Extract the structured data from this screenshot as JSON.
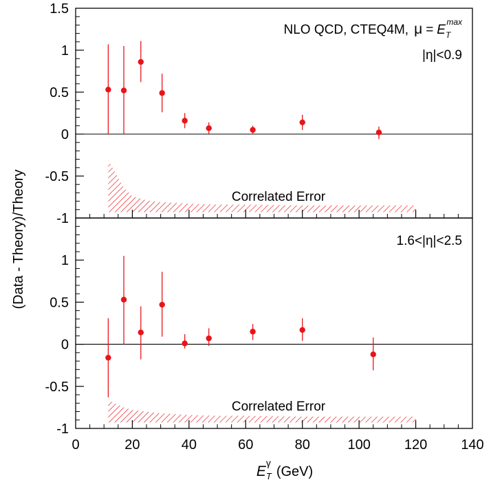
{
  "chart_data": {
    "type": "scatter",
    "ylabel": "(Data - Theory)/Theory",
    "xlabel": {
      "main": "E",
      "sup": "γ",
      "sub": "T",
      "unit": "(GeV)"
    },
    "xlim": [
      0,
      140
    ],
    "x_ticks": [
      "0",
      "20",
      "40",
      "60",
      "80",
      "100",
      "120",
      "140"
    ],
    "ylim": [
      -1,
      1.5
    ],
    "panels": [
      {
        "id": "top",
        "y_ticks": [
          "1.5",
          "1",
          "0.5",
          "0",
          "-0.5",
          "-1"
        ],
        "annotations": {
          "theory_prefix": "NLO QCD, CTEQ4M,",
          "mu": "μ",
          "equals": "=",
          "et_main": "E",
          "et_sub": "T",
          "et_sup": "max",
          "region": "|η|<0.9",
          "band_label": "Correlated Error"
        },
        "series": [
          {
            "x": 11.5,
            "y": 0.53,
            "ylow": 0.0,
            "yhigh": 1.07
          },
          {
            "x": 17.0,
            "y": 0.52,
            "ylow": 0.0,
            "yhigh": 1.05
          },
          {
            "x": 23.0,
            "y": 0.86,
            "ylow": 0.62,
            "yhigh": 1.11
          },
          {
            "x": 30.5,
            "y": 0.49,
            "ylow": 0.26,
            "yhigh": 0.72
          },
          {
            "x": 38.5,
            "y": 0.16,
            "ylow": 0.07,
            "yhigh": 0.25
          },
          {
            "x": 47.0,
            "y": 0.07,
            "ylow": 0.0,
            "yhigh": 0.14
          },
          {
            "x": 62.5,
            "y": 0.05,
            "ylow": 0.0,
            "yhigh": 0.1
          },
          {
            "x": 80.0,
            "y": 0.14,
            "ylow": 0.05,
            "yhigh": 0.23
          },
          {
            "x": 107.0,
            "y": 0.02,
            "ylow": -0.06,
            "yhigh": 0.09
          }
        ],
        "band": {
          "x": [
            11.5,
            13,
            15,
            17,
            20,
            25,
            30,
            40,
            50,
            60,
            80,
            100,
            120
          ],
          "top": [
            -0.31,
            -0.4,
            -0.52,
            -0.64,
            -0.74,
            -0.79,
            -0.81,
            -0.83,
            -0.84,
            -0.84,
            -0.85,
            -0.85,
            -0.85
          ],
          "bottom": -0.93
        }
      },
      {
        "id": "bottom",
        "y_ticks": [
          "1",
          "0.5",
          "0",
          "-0.5",
          "-1"
        ],
        "annotations": {
          "region": "1.6<|η|<2.5",
          "band_label": "Correlated Error"
        },
        "series": [
          {
            "x": 11.5,
            "y": -0.16,
            "ylow": -0.63,
            "yhigh": 0.31
          },
          {
            "x": 17.0,
            "y": 0.53,
            "ylow": 0.0,
            "yhigh": 1.05
          },
          {
            "x": 23.0,
            "y": 0.14,
            "ylow": -0.18,
            "yhigh": 0.45
          },
          {
            "x": 30.5,
            "y": 0.47,
            "ylow": 0.09,
            "yhigh": 0.86
          },
          {
            "x": 38.5,
            "y": 0.01,
            "ylow": -0.05,
            "yhigh": 0.12
          },
          {
            "x": 47.0,
            "y": 0.07,
            "ylow": -0.02,
            "yhigh": 0.19
          },
          {
            "x": 62.5,
            "y": 0.15,
            "ylow": 0.05,
            "yhigh": 0.24
          },
          {
            "x": 80.0,
            "y": 0.17,
            "ylow": 0.04,
            "yhigh": 0.31
          },
          {
            "x": 105.0,
            "y": -0.12,
            "ylow": -0.31,
            "yhigh": 0.08
          }
        ],
        "band": {
          "x": [
            11.5,
            13,
            15,
            17,
            20,
            25,
            30,
            40,
            50,
            60,
            80,
            100,
            120
          ],
          "top": [
            -0.66,
            -0.69,
            -0.72,
            -0.75,
            -0.78,
            -0.8,
            -0.82,
            -0.84,
            -0.85,
            -0.85,
            -0.86,
            -0.86,
            -0.86
          ],
          "bottom": -0.93
        }
      }
    ],
    "colors": {
      "points": "#e8141a",
      "band": "#e8141a",
      "axes": "#000000",
      "zero_line": "#000000"
    }
  }
}
